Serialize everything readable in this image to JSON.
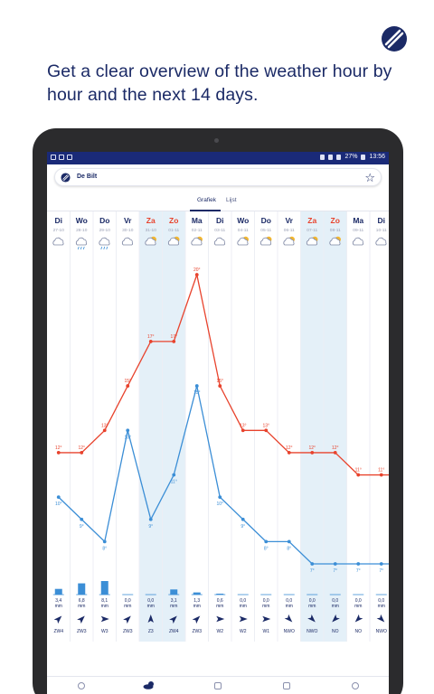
{
  "headline": "Get a clear overview of the weather hour by hour and the next 14 days.",
  "colors": {
    "brand": "#1b2a66",
    "temp_max": "#e8432d",
    "temp_min": "#3b8ed6",
    "weekend": "#e4f0f8",
    "weekend_text": "#e8432d"
  },
  "status_bar": {
    "battery": "27%",
    "time": "13:56"
  },
  "search": {
    "location": "De Bilt",
    "icon": "brand-logo-icon",
    "favorite_icon": "star-outline-icon"
  },
  "tabs": [
    {
      "label": "Grafiek",
      "active": true
    },
    {
      "label": "Lijst",
      "active": false
    }
  ],
  "days": [
    {
      "day": "Di",
      "date": "27-10",
      "weekend": false,
      "icon": "cloud-icon",
      "max": "12°",
      "min": "10°",
      "rain": "3,4",
      "unit": "mm",
      "wind": "ZW4",
      "wind_deg": 225,
      "rain_level": 0.42
    },
    {
      "day": "Wo",
      "date": "28-10",
      "weekend": false,
      "icon": "rain-icon",
      "max": "12°",
      "min": "9°",
      "rain": "6,8",
      "unit": "mm",
      "wind": "ZW3",
      "wind_deg": 225,
      "rain_level": 0.83
    },
    {
      "day": "Do",
      "date": "29-10",
      "weekend": false,
      "icon": "rain-icon",
      "max": "13°",
      "min": "8°",
      "rain": "8,1",
      "unit": "mm",
      "wind": "W3",
      "wind_deg": 270,
      "rain_level": 1.0
    },
    {
      "day": "Vr",
      "date": "30-10",
      "weekend": false,
      "icon": "cloud-icon",
      "max": "15°",
      "min": "13°",
      "rain": "0,0",
      "unit": "mm",
      "wind": "ZW3",
      "wind_deg": 225,
      "rain_level": 0
    },
    {
      "day": "Za",
      "date": "31-10",
      "weekend": true,
      "icon": "partly-sunny-icon",
      "max": "17°",
      "min": "9°",
      "rain": "0,0",
      "unit": "mm",
      "wind": "Z3",
      "wind_deg": 180,
      "rain_level": 0
    },
    {
      "day": "Zo",
      "date": "01-11",
      "weekend": true,
      "icon": "partly-sunny-icon",
      "max": "17°",
      "min": "11°",
      "rain": "3,1",
      "unit": "mm",
      "wind": "ZW4",
      "wind_deg": 225,
      "rain_level": 0.38
    },
    {
      "day": "Ma",
      "date": "02-11",
      "weekend": false,
      "icon": "partly-sunny-icon",
      "max": "20°",
      "min": "15°",
      "rain": "1,3",
      "unit": "mm",
      "wind": "ZW3",
      "wind_deg": 225,
      "rain_level": 0.16
    },
    {
      "day": "Di",
      "date": "03-11",
      "weekend": false,
      "icon": "cloud-icon",
      "max": "15°",
      "min": "10°",
      "rain": "0,6",
      "unit": "mm",
      "wind": "W2",
      "wind_deg": 270,
      "rain_level": 0.07
    },
    {
      "day": "Wo",
      "date": "04-11",
      "weekend": false,
      "icon": "partly-sunny-icon",
      "max": "13°",
      "min": "9°",
      "rain": "0,0",
      "unit": "mm",
      "wind": "W2",
      "wind_deg": 270,
      "rain_level": 0
    },
    {
      "day": "Do",
      "date": "05-11",
      "weekend": false,
      "icon": "partly-sunny-icon",
      "max": "13°",
      "min": "8°",
      "rain": "0,0",
      "unit": "mm",
      "wind": "W1",
      "wind_deg": 270,
      "rain_level": 0
    },
    {
      "day": "Vr",
      "date": "06-11",
      "weekend": false,
      "icon": "partly-sunny-icon",
      "max": "12°",
      "min": "8°",
      "rain": "0,0",
      "unit": "mm",
      "wind": "NWO",
      "wind_deg": 315,
      "rain_level": 0
    },
    {
      "day": "Za",
      "date": "07-11",
      "weekend": true,
      "icon": "partly-sunny-icon",
      "max": "12°",
      "min": "7°",
      "rain": "0,0",
      "unit": "mm",
      "wind": "NWO",
      "wind_deg": 315,
      "rain_level": 0
    },
    {
      "day": "Zo",
      "date": "08-11",
      "weekend": true,
      "icon": "partly-sunny-icon",
      "max": "12°",
      "min": "7°",
      "rain": "0,0",
      "unit": "mm",
      "wind": "NO",
      "wind_deg": 45,
      "rain_level": 0
    },
    {
      "day": "Ma",
      "date": "09-11",
      "weekend": false,
      "icon": "cloud-icon",
      "max": "11°",
      "min": "7°",
      "rain": "0,0",
      "unit": "mm",
      "wind": "NO",
      "wind_deg": 45,
      "rain_level": 0
    },
    {
      "day": "Di",
      "date": "10-11",
      "weekend": false,
      "icon": "cloud-icon",
      "max": "11°",
      "min": "7°",
      "rain": "0,0",
      "unit": "mm",
      "wind": "NWO",
      "wind_deg": 315,
      "rain_level": 0
    }
  ],
  "chart_data": {
    "type": "line",
    "categories": [
      "Di 27-10",
      "Wo 28-10",
      "Do 29-10",
      "Vr 30-10",
      "Za 31-10",
      "Zo 01-11",
      "Ma 02-11",
      "Di 03-11",
      "Wo 04-11",
      "Do 05-11",
      "Vr 06-11",
      "Za 07-11",
      "Zo 08-11",
      "Ma 09-11",
      "Di 10-11"
    ],
    "series": [
      {
        "values": [
          12,
          12,
          13,
          15,
          17,
          17,
          20,
          15,
          13,
          13,
          12,
          12,
          12,
          11,
          11
        ]
      },
      {
        "values": [
          10,
          9,
          8,
          13,
          9,
          11,
          15,
          10,
          9,
          8,
          8,
          7,
          7,
          7,
          7
        ]
      }
    ],
    "ylim": [
      7,
      20
    ]
  },
  "bottom_nav": [
    "clock-icon",
    "weather-icon",
    "play-icon",
    "warning-icon",
    "info-icon"
  ]
}
